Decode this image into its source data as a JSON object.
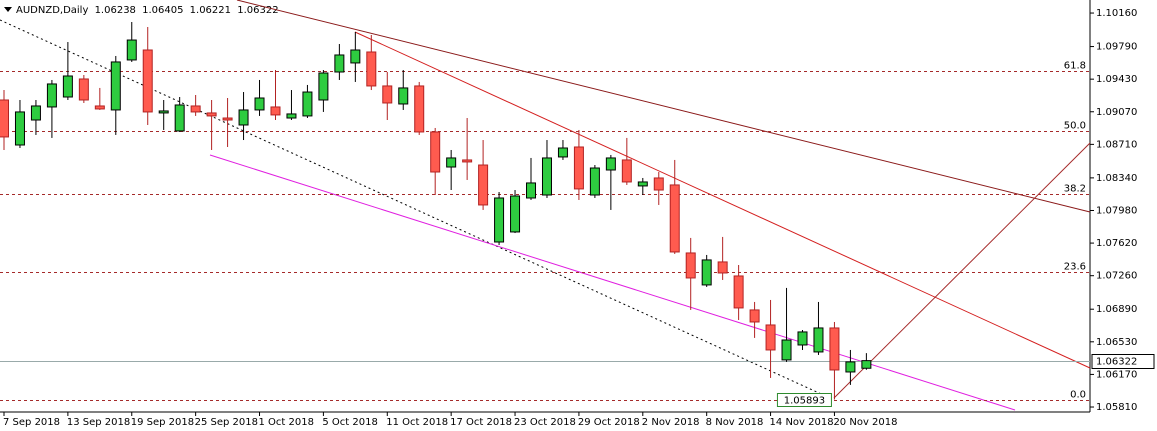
{
  "chart_data": {
    "type": "candlestick",
    "title": "AUDNZD,Daily",
    "categories": [
      "7 Sep 2018",
      null,
      null,
      null,
      "13 Sep 2018",
      null,
      null,
      null,
      "19 Sep 2018",
      null,
      null,
      null,
      "25 Sep 2018",
      null,
      null,
      null,
      "1 Oct 2018",
      null,
      null,
      null,
      "5 Oct 2018",
      null,
      null,
      null,
      "11 Oct 2018",
      null,
      null,
      null,
      "17 Oct 2018",
      null,
      null,
      null,
      "23 Oct 2018",
      null,
      null,
      null,
      "29 Oct 2018",
      null,
      null,
      null,
      "2 Nov 2018",
      null,
      null,
      null,
      "8 Nov 2018",
      null,
      null,
      null,
      "14 Nov 2018",
      null,
      null,
      null,
      "20 Nov 2018",
      null,
      null
    ],
    "open": [
      1.092,
      1.08703,
      1.08979,
      1.09123,
      1.09233,
      1.09432,
      1.09134,
      1.0909,
      1.09642,
      1.09752,
      1.09057,
      1.08858,
      1.09134,
      1.09057,
      1.09001,
      1.08924,
      1.0909,
      1.09123,
      1.09001,
      1.09024,
      1.092,
      1.09509,
      1.09609,
      1.0973,
      1.09355,
      1.09156,
      1.09355,
      1.08847,
      1.0846,
      1.08538,
      1.08482,
      1.07632,
      1.07743,
      1.08118,
      1.08151,
      1.08571,
      1.08681,
      1.08151,
      1.08427,
      1.08538,
      1.08251,
      1.08339,
      1.08262,
      1.07511,
      1.07158,
      1.07412,
      1.07257,
      1.06882,
      1.06716,
      1.0633,
      1.06495,
      1.06418,
      1.06683,
      1.06197,
      1.06238
    ],
    "high": [
      1.0931,
      1.092,
      1.092,
      1.09421,
      1.0984,
      1.09476,
      1.09333,
      1.09686,
      1.10061,
      1.10006,
      1.092,
      1.09233,
      1.09255,
      1.092,
      1.09222,
      1.09288,
      1.09421,
      1.09531,
      1.0931,
      1.09366,
      1.09531,
      1.09818,
      1.09951,
      1.09918,
      1.09509,
      1.09531,
      1.09399,
      1.08891,
      1.08648,
      1.09001,
      1.08758,
      1.08184,
      1.08206,
      1.0856,
      1.08758,
      1.08758,
      1.08869,
      1.08482,
      1.08593,
      1.08781,
      1.08339,
      1.08405,
      1.08538,
      1.07677,
      1.07489,
      1.07688,
      1.07378,
      1.0697,
      1.06992,
      1.07125,
      1.06661,
      1.0697,
      1.06749,
      1.0644,
      1.06405
    ],
    "low": [
      1.08648,
      1.0867,
      1.08814,
      1.08781,
      1.092,
      1.09167,
      1.0909,
      1.08814,
      1.0962,
      1.08924,
      1.08869,
      1.08847,
      1.09024,
      1.08648,
      1.08681,
      1.08758,
      1.09024,
      1.08979,
      1.08979,
      1.09001,
      1.09068,
      1.09421,
      1.09399,
      1.0931,
      1.08979,
      1.0909,
      1.08814,
      1.08151,
      1.08206,
      1.08317,
      1.07986,
      1.07599,
      1.07731,
      1.08096,
      1.08118,
      1.08538,
      1.08096,
      1.08118,
      1.07986,
      1.08262,
      1.08151,
      1.08041,
      1.075,
      1.06882,
      1.07136,
      1.07213,
      1.06771,
      1.06573,
      1.06131,
      1.06308,
      1.0644,
      1.06385,
      1.05893,
      1.06054,
      1.06221
    ],
    "close": [
      1.08792,
      1.09068,
      1.09134,
      1.09377,
      1.09465,
      1.092,
      1.09101,
      1.0962,
      1.09862,
      1.09068,
      1.09079,
      1.09145,
      1.09068,
      1.09024,
      1.08979,
      1.0909,
      1.09222,
      1.09035,
      1.09046,
      1.09288,
      1.09498,
      1.09697,
      1.09752,
      1.09355,
      1.09167,
      1.09333,
      1.08847,
      1.08405,
      1.0856,
      1.08516,
      1.08041,
      1.08118,
      1.0814,
      1.08284,
      1.0856,
      1.0867,
      1.08218,
      1.08449,
      1.0856,
      1.08295,
      1.08295,
      1.08206,
      1.07522,
      1.07235,
      1.07434,
      1.0729,
      1.06904,
      1.06749,
      1.0644,
      1.0655,
      1.06639,
      1.06683,
      1.06219,
      1.06308,
      1.06322
    ],
    "up_color": "#2ecc40",
    "down_color": "#ff5b4f",
    "ylim": [
      1.05755,
      1.10304
    ],
    "yticks": [
      {
        "value": 1.1016,
        "label": "1.10160"
      },
      {
        "value": 1.0979,
        "label": "1.09790"
      },
      {
        "value": 1.0943,
        "label": "1.09430"
      },
      {
        "value": 1.0907,
        "label": "1.09070"
      },
      {
        "value": 1.0871,
        "label": "1.08710"
      },
      {
        "value": 1.0834,
        "label": "1.08340"
      },
      {
        "value": 1.0798,
        "label": "1.07980"
      },
      {
        "value": 1.0762,
        "label": "1.07620"
      },
      {
        "value": 1.0726,
        "label": "1.07260"
      },
      {
        "value": 1.0689,
        "label": "1.06890"
      },
      {
        "value": 1.0653,
        "label": "1.06530"
      },
      {
        "value": 1.0617,
        "label": "1.06170"
      },
      {
        "value": 1.0581,
        "label": "1.05810"
      }
    ],
    "fib_levels": [
      {
        "label": "61.8",
        "value": 1.0952
      },
      {
        "label": "50.0",
        "value": 1.08858
      },
      {
        "label": "38.2",
        "value": 1.08162
      },
      {
        "label": "23.6",
        "value": 1.07301
      },
      {
        "label": "0.0",
        "value": 1.05893
      }
    ]
  }
}
